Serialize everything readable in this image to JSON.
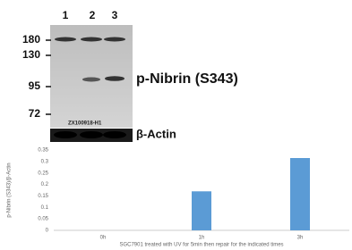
{
  "blot": {
    "lanes": [
      "1",
      "2",
      "3"
    ],
    "markers": [
      180,
      130,
      95,
      72
    ],
    "target": "p-Nibrin (S343)",
    "code": "ZX100918-H1",
    "control": "β-Actin"
  },
  "chart_data": {
    "type": "bar",
    "y_label": "p-Nibrin (S343)/β-Actin",
    "x_label": "SGC7901 treated with UV for 5min then repair for the indicated times",
    "categories": [
      "0h",
      "1h",
      "3h"
    ],
    "values": [
      0,
      0.17,
      0.315
    ],
    "color": "#5b9bd5",
    "ylim": [
      0,
      0.35
    ],
    "yticks": [
      0,
      0.05,
      0.1,
      0.15,
      0.2,
      0.25,
      0.3,
      0.35
    ],
    "grid": false
  }
}
